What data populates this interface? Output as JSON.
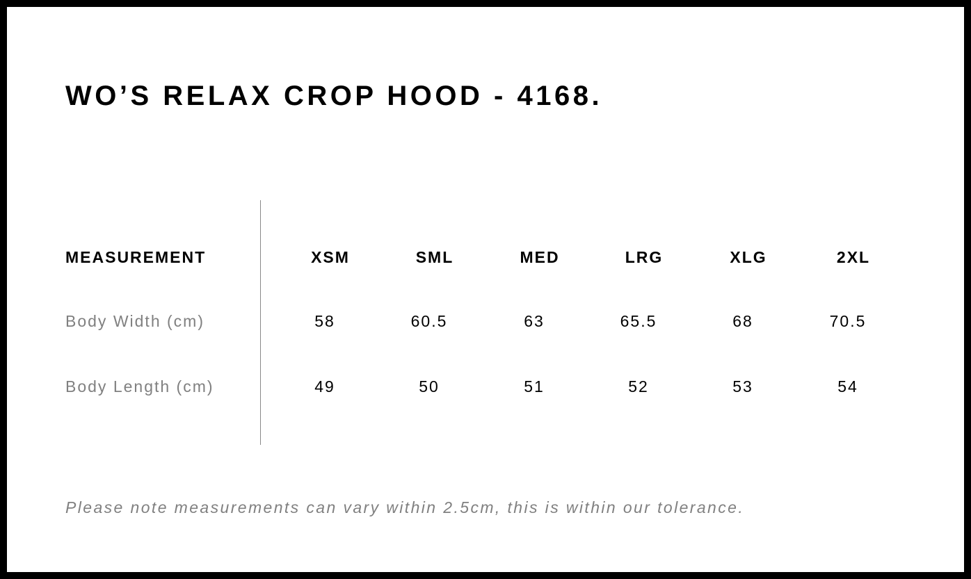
{
  "title": "WO’S RELAX CROP HOOD - 4168.",
  "table": {
    "header_label": "MEASUREMENT",
    "sizes": [
      "XSM",
      "SML",
      "MED",
      "LRG",
      "XLG",
      "2XL"
    ],
    "rows": [
      {
        "label": "Body Width (cm)",
        "values": [
          "58",
          "60.5",
          "63",
          "65.5",
          "68",
          "70.5"
        ]
      },
      {
        "label": "Body Length (cm)",
        "values": [
          "49",
          "50",
          "51",
          "52",
          "53",
          "54"
        ]
      }
    ]
  },
  "note": "Please note measurements can vary within 2.5cm, this is within our tolerance."
}
